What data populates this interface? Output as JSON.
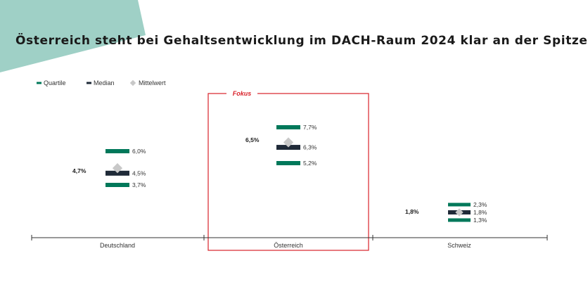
{
  "title": "Österreich steht bei Gehaltsentwicklung im DACH-Raum 2024 klar an der Spitze",
  "colors": {
    "quartile": "#00785a",
    "median": "#1f2a38",
    "mean": "#c8c8c8",
    "focus": "#d9222a",
    "corner": "#9fd0c6",
    "axis": "#333333"
  },
  "legend": [
    {
      "label": "Quartile",
      "kind": "quartile"
    },
    {
      "label": "Median",
      "kind": "median"
    },
    {
      "label": "Mittelwert",
      "kind": "mean"
    }
  ],
  "focus_label": "Fokus",
  "chart_data": {
    "type": "box",
    "title": "Österreich steht bei Gehaltsentwicklung im DACH-Raum 2024 klar an der Spitze",
    "categories": [
      "Deutschland",
      "Österreich",
      "Schweiz"
    ],
    "highlighted_category": "Österreich",
    "ylim": [
      1.0,
      8.0
    ],
    "legend_position": "top-left",
    "series": [
      {
        "name": "Quartile",
        "upper": [
          6.0,
          7.7,
          2.3
        ],
        "lower": [
          3.7,
          5.2,
          1.3
        ],
        "upper_labels": [
          "6,0%",
          "7,7%",
          "2,3%"
        ],
        "lower_labels": [
          "3,7%",
          "5,2%",
          "1,3%"
        ]
      },
      {
        "name": "Median",
        "values": [
          4.5,
          6.3,
          1.8
        ],
        "labels": [
          "4,5%",
          "6,3%",
          "1,8%"
        ]
      },
      {
        "name": "Mittelwert",
        "values": [
          4.7,
          6.5,
          1.8
        ],
        "labels": [
          "4,7%",
          "6,5%",
          "1,8%"
        ]
      }
    ]
  }
}
